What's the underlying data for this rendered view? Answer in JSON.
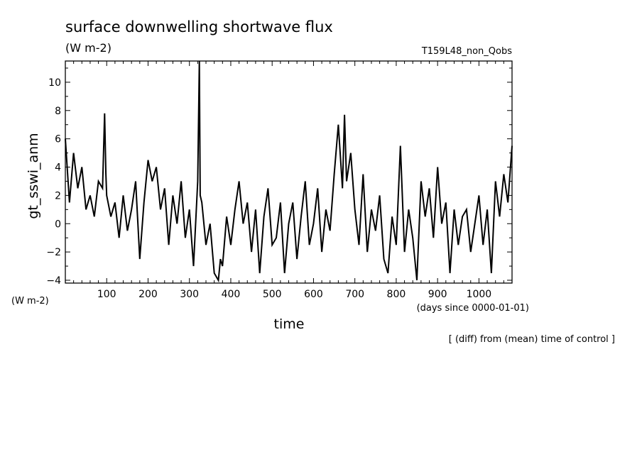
{
  "chart_data": {
    "type": "line",
    "title": "surface downwelling shortwave flux",
    "units": "(W m-2)",
    "run_label": "T159L48_non_Qobs",
    "xlabel": "time",
    "x_units": "(days since 0000-01-01)",
    "ylabel": "gt_sswi_anm",
    "y_units": "(W m-2)",
    "note": "[ (diff) from (mean) time of control ]",
    "xlim": [
      0,
      1080
    ],
    "ylim": [
      -4.2,
      11.5
    ],
    "x_ticks": [
      100,
      200,
      300,
      400,
      500,
      600,
      700,
      800,
      900,
      1000
    ],
    "y_ticks": [
      -4,
      -2,
      0,
      2,
      4,
      6,
      8,
      10
    ],
    "grid": false,
    "legend": "none",
    "line_color": "#000000",
    "series": [
      {
        "x": [
          0,
          10,
          20,
          30,
          40,
          50,
          60,
          70,
          80,
          90,
          95,
          98,
          100,
          110,
          120,
          130,
          140,
          150,
          160,
          170,
          180,
          190,
          200,
          210,
          220,
          230,
          240,
          250,
          260,
          270,
          280,
          290,
          300,
          310,
          320,
          324,
          326,
          330,
          340,
          350,
          360,
          370,
          375,
          380,
          390,
          400,
          410,
          420,
          430,
          440,
          450,
          460,
          470,
          480,
          490,
          500,
          510,
          520,
          530,
          540,
          550,
          560,
          570,
          580,
          590,
          600,
          610,
          620,
          630,
          640,
          650,
          660,
          670,
          675,
          680,
          690,
          700,
          710,
          720,
          730,
          740,
          750,
          760,
          770,
          780,
          790,
          800,
          810,
          820,
          830,
          840,
          850,
          860,
          870,
          880,
          890,
          900,
          910,
          920,
          930,
          940,
          950,
          960,
          970,
          980,
          990,
          1000,
          1010,
          1020,
          1030,
          1040,
          1050,
          1060,
          1070,
          1080
        ],
        "values": [
          6.0,
          1.5,
          5.0,
          2.5,
          4.0,
          1.0,
          2.0,
          0.5,
          3.0,
          2.5,
          7.8,
          3.5,
          2.0,
          0.5,
          1.5,
          -1.0,
          2.0,
          -0.5,
          1.0,
          3.0,
          -2.5,
          1.5,
          4.5,
          3.0,
          4.0,
          1.0,
          2.5,
          -1.5,
          2.0,
          0.0,
          3.0,
          -1.0,
          1.0,
          -3.0,
          3.0,
          11.5,
          2.0,
          1.5,
          -1.5,
          0.0,
          -3.5,
          -4.0,
          -2.5,
          -3.0,
          0.5,
          -1.5,
          1.0,
          3.0,
          0.0,
          1.5,
          -2.0,
          1.0,
          -3.5,
          0.5,
          2.5,
          -1.5,
          -1.0,
          1.5,
          -3.5,
          0.0,
          1.5,
          -2.5,
          0.5,
          3.0,
          -1.5,
          0.0,
          2.5,
          -2.0,
          1.0,
          -0.5,
          3.5,
          7.0,
          2.5,
          7.7,
          3.0,
          5.0,
          1.0,
          -1.5,
          3.5,
          -2.0,
          1.0,
          -0.5,
          2.0,
          -2.5,
          -3.5,
          0.5,
          -1.5,
          5.5,
          -2.0,
          1.0,
          -1.0,
          -4.0,
          3.0,
          0.5,
          2.5,
          -1.0,
          4.0,
          0.0,
          1.5,
          -3.5,
          1.0,
          -1.5,
          0.5,
          1.0,
          -2.0,
          0.0,
          2.0,
          -1.5,
          1.0,
          -3.5,
          3.0,
          0.5,
          3.5,
          1.5,
          5.5
        ]
      }
    ]
  }
}
